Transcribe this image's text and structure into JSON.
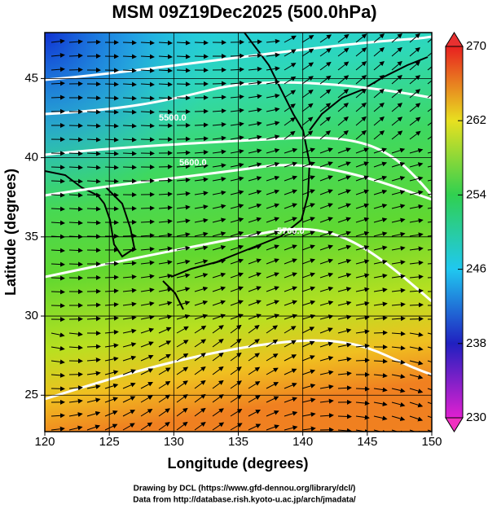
{
  "chart_data": {
    "type": "map",
    "title": "MSM 09Z19Dec2025 (500.0hPa)",
    "x_label": "Longitude (degrees)",
    "y_label": "Latitude  (degrees)",
    "xlim": [
      120,
      150
    ],
    "ylim": [
      22.7,
      47.9
    ],
    "xticks": [
      120,
      125,
      130,
      135,
      140,
      145,
      150
    ],
    "yticks": [
      25,
      30,
      35,
      40,
      45
    ],
    "grid": true,
    "colorbar": {
      "lim": [
        230,
        270
      ],
      "ticks": [
        230,
        238,
        246,
        254,
        262,
        270
      ]
    },
    "contour_labels": [
      "5500.0",
      "5600.0",
      "5700.0"
    ]
  },
  "credits": [
    "Drawing by DCL (https://www.gfd-dennou.org/library/dcl/)",
    "Data from http://database.rish.kyoto-u.ac.jp/arch/jmadata/"
  ]
}
